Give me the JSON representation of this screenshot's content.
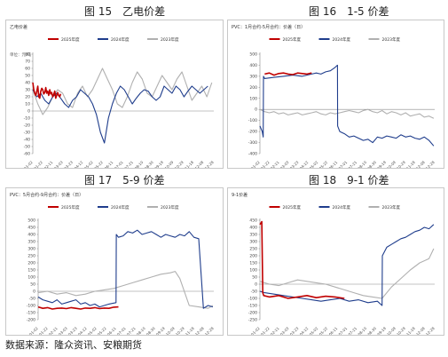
{
  "figure_titles": {
    "f15": "图 15　乙电价差",
    "f16": "图 16　1-5 价差",
    "f17": "图 17　5-9 价差",
    "f18": "图 18　9-1 价差"
  },
  "source": "数据来源：隆众资讯、安粮期货",
  "colors": {
    "y2025": "#c00000",
    "y2024": "#1f3d8c",
    "y2023": "#b0b0b0"
  },
  "chart_data": [
    {
      "id": "ethylene-electric-spread",
      "type": "line",
      "title": "乙电价差",
      "unit": "单位：元/吨",
      "legend": [
        "2025年度",
        "2024年度",
        "2023年度"
      ],
      "ylim": [
        -60,
        80
      ],
      "yticks": [
        "80",
        "70",
        "60",
        "50",
        "40",
        "30",
        "20",
        "10",
        "0",
        "-10",
        "-20",
        "-30",
        "-40",
        "-50",
        "-60"
      ],
      "xticks": [
        "01-02",
        "01-22",
        "02-11",
        "03-03",
        "03-23",
        "04-12",
        "05-02",
        "05-22",
        "06-11",
        "07-01",
        "07-21",
        "08-10",
        "08-30",
        "09-19",
        "10-09",
        "10-29",
        "11-18",
        "12-08",
        "12-28"
      ],
      "series": [
        {
          "name": "2025年度",
          "x": [
            0,
            2,
            4,
            6,
            8,
            10,
            12,
            14,
            16,
            18,
            20,
            22,
            24,
            26,
            28,
            30,
            32,
            34,
            36,
            38,
            40,
            42,
            44,
            46,
            48,
            50,
            52,
            54,
            56
          ],
          "y": [
            40,
            30,
            25,
            22,
            28,
            35,
            20,
            18,
            28,
            32,
            30,
            24,
            26,
            33,
            25,
            28,
            22,
            30,
            24,
            26,
            20,
            23,
            28,
            18,
            22,
            26,
            22,
            20,
            24
          ]
        },
        {
          "name": "2024年度",
          "x": [
            0,
            8,
            16,
            24,
            32,
            40,
            48,
            56,
            64,
            72,
            80,
            88,
            96,
            104,
            112,
            120,
            128,
            136,
            144,
            152,
            160,
            168,
            176,
            184,
            192,
            200,
            208,
            216,
            224,
            232,
            240,
            248,
            256,
            264,
            272,
            280,
            288,
            296,
            304,
            312,
            320,
            328,
            336,
            344,
            352
          ],
          "y": [
            30,
            20,
            25,
            15,
            10,
            20,
            25,
            18,
            10,
            5,
            15,
            20,
            30,
            25,
            20,
            10,
            -5,
            -30,
            -45,
            -10,
            10,
            25,
            35,
            30,
            20,
            10,
            18,
            25,
            30,
            28,
            20,
            15,
            20,
            35,
            30,
            25,
            35,
            30,
            20,
            28,
            35,
            30,
            25,
            30,
            35
          ]
        },
        {
          "name": "2023年度",
          "x": [
            0,
            10,
            20,
            30,
            40,
            50,
            60,
            70,
            80,
            90,
            100,
            110,
            120,
            130,
            140,
            150,
            160,
            170,
            180,
            190,
            200,
            210,
            220,
            230,
            240,
            250,
            260,
            270,
            280,
            290,
            300,
            310,
            320,
            330,
            340,
            350,
            360
          ],
          "y": [
            30,
            10,
            -5,
            5,
            20,
            30,
            25,
            10,
            5,
            25,
            35,
            20,
            30,
            45,
            60,
            45,
            30,
            10,
            5,
            20,
            40,
            55,
            45,
            25,
            20,
            35,
            50,
            40,
            30,
            45,
            55,
            35,
            15,
            25,
            35,
            20,
            40
          ]
        }
      ]
    },
    {
      "id": "spread-1-5",
      "type": "line",
      "title": "1-5 价差",
      "header": "PVC：1月合约-5月合约：价差（日）",
      "legend": [
        "2025年度",
        "2024年度",
        "2023年度"
      ],
      "ylim": [
        -400,
        500
      ],
      "yticks": [
        "500",
        "400",
        "300",
        "200",
        "100",
        "0",
        "-100",
        "-200",
        "-300",
        "-400"
      ],
      "xticks": [
        "01-02",
        "01-22",
        "02-11",
        "03-03",
        "03-23",
        "04-12",
        "05-02",
        "05-22",
        "06-11",
        "07-01",
        "07-21",
        "08-10",
        "08-30",
        "09-19",
        "10-09",
        "10-29",
        "11-18",
        "12-08",
        "12-28"
      ],
      "series": [
        {
          "name": "2025年度",
          "x": [
            20,
            40,
            60,
            80,
            100,
            120,
            140,
            160,
            180,
            200,
            220
          ],
          "y": [
            320,
            330,
            310,
            325,
            330,
            320,
            315,
            330,
            325,
            320,
            330
          ]
        },
        {
          "name": "2024年度",
          "x": [
            0,
            10,
            14,
            15,
            20,
            60,
            100,
            140,
            180,
            200,
            220,
            240,
            260,
            280,
            300,
            320,
            330,
            331,
            340,
            360,
            380,
            400,
            420,
            440,
            460,
            480,
            500,
            520,
            540,
            560,
            580,
            600,
            620,
            640,
            660,
            680,
            700,
            720,
            740
          ],
          "y": [
            -150,
            -200,
            -250,
            300,
            280,
            290,
            300,
            310,
            300,
            310,
            320,
            330,
            320,
            340,
            350,
            380,
            400,
            -150,
            -200,
            -220,
            -250,
            -240,
            -260,
            -280,
            -270,
            -300,
            -250,
            -260,
            -240,
            -250,
            -260,
            -230,
            -250,
            -240,
            -260,
            -270,
            -250,
            -280,
            -330
          ]
        },
        {
          "name": "2023年度",
          "x": [
            0,
            20,
            40,
            60,
            80,
            100,
            120,
            140,
            160,
            180,
            200,
            220,
            240,
            260,
            280,
            300,
            320,
            340,
            360,
            380,
            400,
            420,
            440,
            460,
            480,
            500,
            520,
            540,
            560,
            580,
            600,
            620,
            640,
            660,
            680,
            700,
            720,
            740
          ],
          "y": [
            0,
            -20,
            -30,
            -20,
            -40,
            -30,
            -50,
            -40,
            -30,
            -50,
            -40,
            -30,
            -20,
            -40,
            -50,
            -30,
            -40,
            -30,
            -20,
            -10,
            -20,
            -30,
            -10,
            0,
            -20,
            -30,
            -10,
            -40,
            -20,
            -30,
            -50,
            -30,
            -60,
            -50,
            -40,
            -70,
            -60,
            -80
          ]
        }
      ]
    },
    {
      "id": "spread-5-9",
      "type": "line",
      "title": "5-9 价差",
      "header": "PVC：5月合约-9月合约：价差（日）",
      "legend": [
        "2025年度",
        "2024年度",
        "2023年度"
      ],
      "ylim": [
        -200,
        500
      ],
      "yticks": [
        "500",
        "450",
        "400",
        "350",
        "300",
        "250",
        "200",
        "150",
        "100",
        "50",
        "0",
        "-50",
        "-100",
        "-150",
        "-200"
      ],
      "xticks": [
        "01-02",
        "01-22",
        "02-11",
        "03-03",
        "03-23",
        "04-12",
        "05-02",
        "05-22",
        "06-11",
        "07-01",
        "07-21",
        "08-10",
        "08-30",
        "09-19",
        "10-09",
        "10-29",
        "11-18",
        "12-08",
        "12-28"
      ],
      "series": [
        {
          "name": "2025年度",
          "x": [
            0,
            20,
            40,
            60,
            80,
            100,
            120,
            140,
            160,
            180,
            200,
            220,
            240,
            260,
            280,
            300,
            320,
            340
          ],
          "y": [
            -110,
            -120,
            -115,
            -125,
            -120,
            -118,
            -122,
            -115,
            -120,
            -125,
            -118,
            -120,
            -115,
            -122,
            -118,
            -120,
            -112,
            -110
          ]
        },
        {
          "name": "2024年度",
          "x": [
            0,
            20,
            40,
            60,
            80,
            100,
            120,
            140,
            160,
            180,
            200,
            220,
            240,
            260,
            280,
            300,
            330,
            331,
            340,
            360,
            380,
            400,
            420,
            440,
            460,
            480,
            500,
            520,
            540,
            560,
            580,
            600,
            620,
            640,
            660,
            680,
            700,
            720,
            740
          ],
          "y": [
            -40,
            -60,
            -70,
            -80,
            -60,
            -90,
            -80,
            -70,
            -60,
            -90,
            -80,
            -100,
            -90,
            -110,
            -100,
            -90,
            -80,
            400,
            380,
            390,
            420,
            410,
            430,
            400,
            410,
            420,
            400,
            380,
            400,
            390,
            380,
            400,
            390,
            420,
            380,
            370,
            -120,
            -100,
            -110
          ]
        },
        {
          "name": "2023年度",
          "x": [
            0,
            40,
            80,
            120,
            160,
            200,
            240,
            280,
            320,
            360,
            400,
            440,
            480,
            520,
            560,
            580,
            600,
            640,
            680,
            720,
            740
          ],
          "y": [
            -10,
            0,
            -20,
            -10,
            -30,
            -20,
            0,
            10,
            20,
            40,
            60,
            80,
            100,
            120,
            130,
            140,
            90,
            -100,
            -110,
            -120,
            -100
          ]
        }
      ]
    },
    {
      "id": "spread-9-1",
      "type": "line",
      "title": "9-1 价差",
      "header": "9-1价差",
      "legend": [
        "2025年度",
        "2024年度",
        "2023年度"
      ],
      "ylim": [
        -250,
        450
      ],
      "yticks": [
        "450",
        "400",
        "350",
        "300",
        "250",
        "200",
        "150",
        "100",
        "50",
        "0",
        "-50",
        "-100",
        "-150",
        "-200",
        "-250"
      ],
      "xticks": [
        "01-02",
        "01-22",
        "02-11",
        "03-03",
        "03-23",
        "04-12",
        "05-02",
        "05-22",
        "06-11",
        "07-01",
        "07-21",
        "08-10",
        "08-30",
        "09-19",
        "10-09",
        "10-29",
        "11-18",
        "12-08",
        "12-28"
      ],
      "series": [
        {
          "name": "2025年度",
          "x": [
            0,
            4,
            8,
            12,
            16,
            40,
            80,
            120,
            160,
            200,
            240,
            280,
            320,
            360
          ],
          "y": [
            420,
            430,
            440,
            -60,
            -80,
            -90,
            -80,
            -100,
            -90,
            -80,
            -95,
            -85,
            -90,
            -100
          ]
        },
        {
          "name": "2024年度",
          "x": [
            0,
            20,
            60,
            100,
            140,
            180,
            220,
            260,
            300,
            340,
            380,
            420,
            460,
            500,
            520,
            521,
            540,
            560,
            580,
            600,
            620,
            640,
            660,
            680,
            700,
            720,
            740
          ],
          "y": [
            -50,
            -60,
            -70,
            -80,
            -90,
            -100,
            -110,
            -120,
            -110,
            -100,
            -120,
            -110,
            -130,
            -120,
            -150,
            200,
            260,
            280,
            300,
            320,
            330,
            350,
            370,
            380,
            400,
            390,
            420
          ]
        },
        {
          "name": "2023年度",
          "x": [
            0,
            40,
            80,
            120,
            160,
            200,
            240,
            280,
            320,
            360,
            400,
            440,
            480,
            520,
            560,
            600,
            640,
            680,
            720,
            740
          ],
          "y": [
            20,
            0,
            -10,
            10,
            30,
            20,
            10,
            0,
            -20,
            -40,
            -60,
            -80,
            -90,
            -100,
            -20,
            40,
            100,
            150,
            180,
            250
          ]
        }
      ]
    }
  ]
}
